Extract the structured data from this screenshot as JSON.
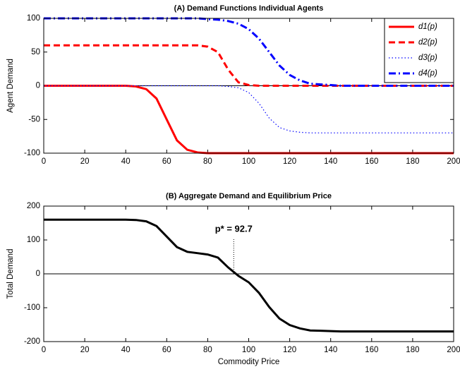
{
  "chart_data": [
    {
      "type": "line",
      "title": "(A) Demand Functions Individual Agents",
      "y_label": "Agent Demand",
      "x": [
        0,
        5,
        10,
        15,
        20,
        25,
        30,
        35,
        40,
        45,
        50,
        55,
        60,
        65,
        70,
        75,
        80,
        85,
        90,
        95,
        100,
        105,
        110,
        115,
        120,
        125,
        130,
        135,
        140,
        145,
        150,
        155,
        160,
        165,
        170,
        175,
        180,
        185,
        190,
        195,
        200
      ],
      "xlim": [
        0,
        200
      ],
      "xticks": [
        0,
        20,
        40,
        60,
        80,
        100,
        120,
        140,
        160,
        180,
        200
      ],
      "ylim": [
        -100,
        100
      ],
      "yticks": [
        -100,
        -50,
        0,
        50,
        100
      ],
      "hline": 0,
      "legend": "upper right",
      "series": [
        {
          "name": "d1(p)",
          "color": "#ff0000",
          "style": "solid",
          "linewidth": 3,
          "values": [
            0,
            0,
            0,
            0,
            0,
            0,
            0,
            0,
            0,
            -1,
            -5,
            -19,
            -50,
            -81,
            -95,
            -99,
            -100,
            -100,
            -100,
            -100,
            -100,
            -100,
            -100,
            -100,
            -100,
            -100,
            -100,
            -100,
            -100,
            -100,
            -100,
            -100,
            -100,
            -100,
            -100,
            -100,
            -100,
            -100,
            -100,
            -100,
            -100
          ]
        },
        {
          "name": "d2(p)",
          "color": "#ff0000",
          "style": "dashed",
          "linewidth": 3,
          "values": [
            60,
            60,
            60,
            60,
            60,
            60,
            60,
            60,
            60,
            60,
            60,
            60,
            60,
            60,
            60,
            60,
            58,
            50,
            24,
            5,
            1,
            0,
            0,
            0,
            0,
            0,
            0,
            0,
            0,
            0,
            0,
            0,
            0,
            0,
            0,
            0,
            0,
            0,
            0,
            0,
            0
          ]
        },
        {
          "name": "d3(p)",
          "color": "#0000ff",
          "style": "dotted",
          "linewidth": 1.2,
          "values": [
            0,
            0,
            0,
            0,
            0,
            0,
            0,
            0,
            0,
            0,
            0,
            0,
            0,
            0,
            0,
            0,
            0,
            0,
            -1,
            -3,
            -10,
            -26,
            -48,
            -62,
            -67,
            -69,
            -70,
            -70,
            -70,
            -70,
            -70,
            -70,
            -70,
            -70,
            -70,
            -70,
            -70,
            -70,
            -70,
            -70,
            -70
          ]
        },
        {
          "name": "d4(p)",
          "color": "#0000ff",
          "style": "dashdot",
          "linewidth": 3,
          "values": [
            100,
            100,
            100,
            100,
            100,
            100,
            100,
            100,
            100,
            100,
            100,
            100,
            100,
            100,
            100,
            100,
            99,
            98,
            96,
            92,
            84,
            70,
            50,
            30,
            16,
            8,
            3,
            2,
            1,
            0,
            0,
            0,
            0,
            0,
            0,
            0,
            0,
            0,
            0,
            0,
            0
          ]
        }
      ]
    },
    {
      "type": "line",
      "title": "(B) Aggregate Demand and Equilibrium Price",
      "y_label": "Total Demand",
      "x_label": "Commodity Price",
      "x": [
        0,
        5,
        10,
        15,
        20,
        25,
        30,
        35,
        40,
        45,
        50,
        55,
        60,
        65,
        70,
        75,
        80,
        85,
        90,
        95,
        100,
        105,
        110,
        115,
        120,
        125,
        130,
        135,
        140,
        145,
        150,
        155,
        160,
        165,
        170,
        175,
        180,
        185,
        190,
        195,
        200
      ],
      "xlim": [
        0,
        200
      ],
      "xticks": [
        0,
        20,
        40,
        60,
        80,
        100,
        120,
        140,
        160,
        180,
        200
      ],
      "ylim": [
        -200,
        200
      ],
      "yticks": [
        -200,
        -100,
        0,
        100,
        200
      ],
      "hline": 0,
      "annotation": {
        "text": "p* = 92.7",
        "x": 92.7
      },
      "series": [
        {
          "color": "#000000",
          "style": "solid",
          "linewidth": 3,
          "values": [
            160,
            160,
            160,
            160,
            160,
            160,
            160,
            160,
            160,
            159,
            155,
            141,
            110,
            79,
            65,
            61,
            57,
            48,
            19,
            -6,
            -25,
            -56,
            -98,
            -132,
            -151,
            -161,
            -167,
            -168,
            -169,
            -170,
            -170,
            -170,
            -170,
            -170,
            -170,
            -170,
            -170,
            -170,
            -170,
            -170,
            -170
          ]
        }
      ]
    }
  ]
}
